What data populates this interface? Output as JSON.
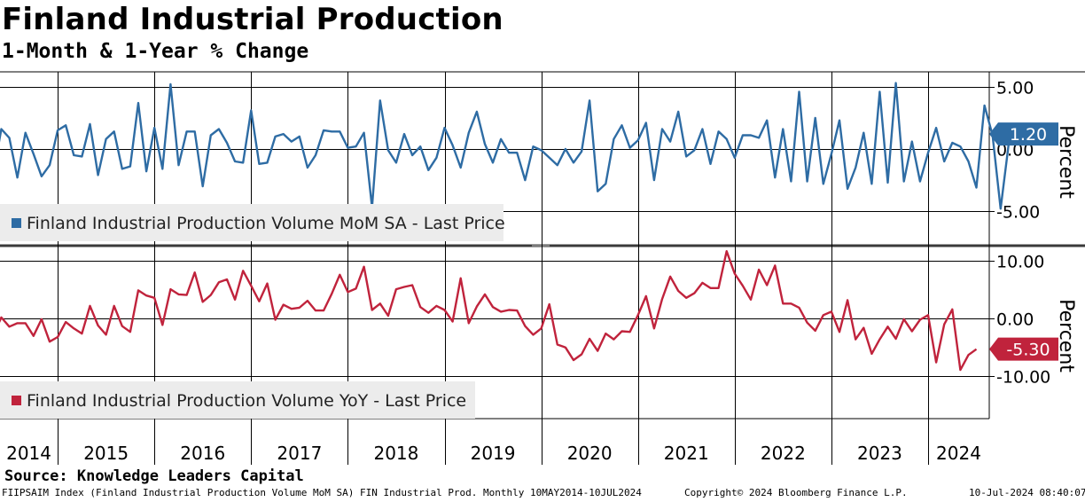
{
  "title": "Finland Industrial Production",
  "subtitle": "1-Month & 1-Year % Change",
  "source": "Source: Knowledge Leaders Capital",
  "footer": {
    "index_desc": "FIIPSAIM Index (Finland Industrial Production Volume MoM SA) FIN Industrial Prod.  Monthly 10MAY2014-10JUL2024",
    "copyright": "Copyright© 2024 Bloomberg Finance L.P.",
    "timestamp": "10-Jul-2024 08:40:07"
  },
  "colors": {
    "mom": "#2e6ca4",
    "yoy": "#c0233c",
    "grid": "#000000",
    "legend_bg": "#ececec"
  },
  "chart_data": [
    {
      "type": "line",
      "name": "mom",
      "legend": "Finland Industrial Production Volume MoM SA - Last Price",
      "ylabel": "Percent",
      "ylim": [
        -7.7,
        6.2
      ],
      "yticks": [
        5,
        0,
        -5
      ],
      "ytick_labels": [
        "5.00",
        "0.00",
        "-5.00"
      ],
      "last_value_label": "1.20",
      "x_start": 2014.25,
      "x_step": 0.0833333,
      "values": [
        -0.3,
        -2.0,
        1.6,
        0.9,
        -2.3,
        1.3,
        -0.4,
        -2.2,
        -1.3,
        1.5,
        1.9,
        -0.5,
        -0.6,
        2.0,
        -2.1,
        0.8,
        1.4,
        -1.6,
        -1.4,
        3.7,
        -1.8,
        1.7,
        -1.6,
        5.2,
        -1.3,
        1.4,
        1.4,
        -3.0,
        1.1,
        1.6,
        0.5,
        -1.0,
        -1.1,
        3.1,
        -1.2,
        -1.1,
        1.0,
        1.2,
        0.6,
        1.0,
        -1.5,
        -0.5,
        1.5,
        1.4,
        1.4,
        0.1,
        0.2,
        1.3,
        -4.7,
        3.9,
        -0.1,
        -1.1,
        1.2,
        -0.5,
        0.2,
        -1.7,
        -0.7,
        1.7,
        0.3,
        -1.5,
        1.3,
        3.0,
        0.4,
        -1.1,
        0.8,
        -0.3,
        -0.3,
        -2.5,
        0.2,
        -0.1,
        -0.7,
        -1.3,
        0.0,
        -1.1,
        -0.2,
        3.9,
        -3.4,
        -2.8,
        0.8,
        1.9,
        0.1,
        0.7,
        2.1,
        -2.5,
        1.6,
        0.6,
        3.0,
        -0.6,
        -0.1,
        1.6,
        -1.2,
        1.4,
        0.8,
        -0.7,
        1.1,
        1.1,
        0.9,
        2.3,
        -2.3,
        1.6,
        -2.6,
        4.6,
        -2.6,
        2.5,
        -2.8,
        -0.4,
        2.3,
        -3.2,
        -1.5,
        1.3,
        -2.8,
        4.6,
        -2.7,
        5.3,
        -2.6,
        0.6,
        -2.6,
        -0.3,
        1.7,
        -1.0,
        0.5,
        0.2,
        -1.0,
        -3.1,
        3.5,
        1.1,
        -4.8,
        0.4,
        1.2
      ],
      "x_tick_years": [
        2014,
        2015,
        2016,
        2017,
        2018,
        2019,
        2020,
        2021,
        2022,
        2023,
        2024
      ]
    },
    {
      "type": "line",
      "name": "yoy",
      "legend": "Finland Industrial Production Volume YoY - Last Price",
      "ylabel": "Percent",
      "ylim": [
        -17.2,
        12.5
      ],
      "yticks": [
        10,
        0,
        -10
      ],
      "ytick_labels": [
        "10.00",
        "0.00",
        "-10.00"
      ],
      "last_value_label": "-5.30",
      "x_start": 2014.25,
      "x_step": 0.0833333,
      "values": [
        -0.3,
        -2.8,
        0.2,
        -1.4,
        -0.8,
        -0.8,
        -3.0,
        -0.1,
        -4.0,
        -3.2,
        -0.6,
        -1.7,
        -2.6,
        2.2,
        -1.2,
        -2.8,
        2.2,
        -1.3,
        -2.3,
        4.9,
        4.0,
        3.6,
        -1.1,
        5.1,
        4.2,
        4.1,
        8.0,
        2.9,
        4.1,
        6.3,
        6.8,
        3.3,
        8.3,
        5.7,
        3.0,
        6.1,
        -0.2,
        2.4,
        1.7,
        1.9,
        3.1,
        1.4,
        1.4,
        4.3,
        7.6,
        4.6,
        5.2,
        9.0,
        1.5,
        2.6,
        0.5,
        5.1,
        5.5,
        5.8,
        2.0,
        1.0,
        2.2,
        1.5,
        -0.5,
        7.0,
        -0.8,
        2.1,
        4.2,
        2.0,
        1.2,
        1.5,
        1.4,
        -1.3,
        -2.8,
        -1.7,
        2.5,
        -4.5,
        -5.0,
        -7.2,
        -6.2,
        -3.5,
        -5.6,
        -2.6,
        -3.6,
        -2.2,
        -2.3,
        0.6,
        3.9,
        -1.7,
        3.4,
        7.3,
        4.8,
        3.6,
        4.4,
        6.2,
        5.3,
        5.3,
        11.7,
        7.8,
        5.7,
        3.3,
        8.5,
        5.8,
        9.2,
        2.6,
        2.6,
        1.9,
        -0.7,
        -2.1,
        0.6,
        1.2,
        -2.3,
        3.2,
        -3.6,
        -1.6,
        -6.1,
        -3.6,
        -1.4,
        -3.5,
        -0.1,
        -2.2,
        -0.2,
        0.6,
        -7.6,
        -1.0,
        1.6,
        -8.9,
        -6.3,
        -5.3
      ],
      "x_tick_years": [
        2014,
        2015,
        2016,
        2017,
        2018,
        2019,
        2020,
        2021,
        2022,
        2023,
        2024
      ]
    }
  ]
}
